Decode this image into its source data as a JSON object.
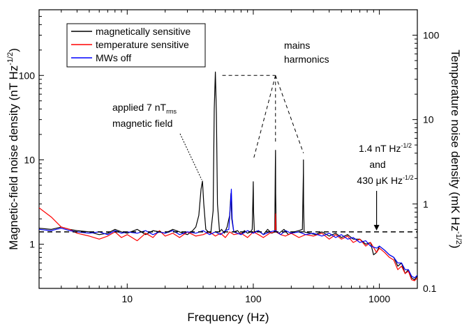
{
  "chart_data": {
    "type": "line",
    "xlabel": "Frequency (Hz)",
    "ylabel_left": {
      "text": "Magnetic-field noise density (nT Hz",
      "sup": "-1/2",
      "suffix": ")"
    },
    "ylabel_right": {
      "text": "Temperature noise density (mK Hz",
      "sup": "-1/2",
      "suffix": ")"
    },
    "x_scale": "log",
    "y_scale": "log",
    "xlim": [
      2,
      2000
    ],
    "ylim": [
      0.3,
      600
    ],
    "ylim_right": [
      0.1,
      200
    ],
    "x_ticks": [
      {
        "value": 10,
        "label": "10"
      },
      {
        "value": 100,
        "label": "100"
      },
      {
        "value": 1000,
        "label": "1000"
      }
    ],
    "y_ticks": [
      {
        "value": 1,
        "label": "1"
      },
      {
        "value": 10,
        "label": "10"
      },
      {
        "value": 100,
        "label": "100"
      }
    ],
    "y_ticks_right": [
      {
        "value": 0.1,
        "label": "0.1"
      },
      {
        "value": 1,
        "label": "1"
      },
      {
        "value": 10,
        "label": "10"
      },
      {
        "value": 100,
        "label": "100"
      }
    ],
    "grid": false,
    "legend_position": "top-left",
    "series": [
      {
        "name": "magnetically sensitive",
        "color": "#000000",
        "points": [
          [
            2,
            1.55
          ],
          [
            2.5,
            1.5
          ],
          [
            3,
            1.6
          ],
          [
            3.5,
            1.5
          ],
          [
            4,
            1.45
          ],
          [
            5,
            1.4
          ],
          [
            6,
            1.3
          ],
          [
            7,
            1.35
          ],
          [
            8,
            1.5
          ],
          [
            9,
            1.4
          ],
          [
            10,
            1.35
          ],
          [
            12,
            1.5
          ],
          [
            14,
            1.3
          ],
          [
            16,
            1.45
          ],
          [
            18,
            1.4
          ],
          [
            20,
            1.35
          ],
          [
            23,
            1.5
          ],
          [
            26,
            1.4
          ],
          [
            30,
            1.3
          ],
          [
            33,
            1.45
          ],
          [
            35,
            1.6
          ],
          [
            37,
            2.2
          ],
          [
            38.5,
            4.5
          ],
          [
            39.5,
            5.6
          ],
          [
            40.5,
            3.0
          ],
          [
            42,
            1.5
          ],
          [
            44,
            1.4
          ],
          [
            46,
            1.35
          ],
          [
            48,
            2.5
          ],
          [
            49,
            40
          ],
          [
            50,
            110
          ],
          [
            51,
            35
          ],
          [
            52,
            3.0
          ],
          [
            54,
            1.4
          ],
          [
            56,
            1.5
          ],
          [
            59,
            1.35
          ],
          [
            62,
            1.6
          ],
          [
            65,
            2.2
          ],
          [
            66.5,
            4.0
          ],
          [
            67.5,
            2.0
          ],
          [
            70,
            1.4
          ],
          [
            75,
            1.45
          ],
          [
            80,
            1.3
          ],
          [
            85,
            1.45
          ],
          [
            90,
            1.35
          ],
          [
            95,
            1.4
          ],
          [
            98,
            1.5
          ],
          [
            99.5,
            4.0
          ],
          [
            100,
            5.5
          ],
          [
            100.5,
            2.5
          ],
          [
            102,
            1.4
          ],
          [
            110,
            1.45
          ],
          [
            120,
            1.3
          ],
          [
            130,
            1.5
          ],
          [
            140,
            1.35
          ],
          [
            148,
            1.4
          ],
          [
            149.5,
            8
          ],
          [
            150,
            13
          ],
          [
            150.5,
            4
          ],
          [
            152,
            1.4
          ],
          [
            160,
            1.35
          ],
          [
            175,
            1.5
          ],
          [
            190,
            1.3
          ],
          [
            210,
            1.4
          ],
          [
            230,
            1.45
          ],
          [
            245,
            1.5
          ],
          [
            249.5,
            7
          ],
          [
            250,
            10
          ],
          [
            250.5,
            3
          ],
          [
            253,
            1.4
          ],
          [
            280,
            1.35
          ],
          [
            310,
            1.3
          ],
          [
            350,
            1.4
          ],
          [
            400,
            1.25
          ],
          [
            450,
            1.35
          ],
          [
            500,
            1.2
          ],
          [
            560,
            1.3
          ],
          [
            620,
            1.15
          ],
          [
            700,
            1.15
          ],
          [
            780,
            1.0
          ],
          [
            850,
            1.05
          ],
          [
            900,
            0.75
          ],
          [
            950,
            0.8
          ],
          [
            1000,
            0.95
          ],
          [
            1100,
            0.85
          ],
          [
            1200,
            0.75
          ],
          [
            1300,
            0.7
          ],
          [
            1400,
            0.55
          ],
          [
            1500,
            0.6
          ],
          [
            1600,
            0.45
          ],
          [
            1700,
            0.5
          ],
          [
            1800,
            0.4
          ],
          [
            1900,
            0.38
          ],
          [
            2000,
            0.42
          ]
        ]
      },
      {
        "name": "temperature sensitive",
        "color": "#ff0000",
        "points": [
          [
            2,
            2.7
          ],
          [
            2.5,
            2.1
          ],
          [
            3,
            1.6
          ],
          [
            3.5,
            1.5
          ],
          [
            4,
            1.35
          ],
          [
            5,
            1.25
          ],
          [
            6,
            1.15
          ],
          [
            7,
            1.25
          ],
          [
            8,
            1.4
          ],
          [
            9,
            1.2
          ],
          [
            10,
            1.3
          ],
          [
            12,
            1.1
          ],
          [
            14,
            1.35
          ],
          [
            16,
            1.2
          ],
          [
            18,
            1.45
          ],
          [
            20,
            1.25
          ],
          [
            23,
            1.35
          ],
          [
            26,
            1.2
          ],
          [
            30,
            1.4
          ],
          [
            35,
            1.25
          ],
          [
            40,
            1.3
          ],
          [
            45,
            1.4
          ],
          [
            50,
            1.25
          ],
          [
            55,
            1.35
          ],
          [
            60,
            1.2
          ],
          [
            65,
            1.4
          ],
          [
            70,
            1.3
          ],
          [
            80,
            1.35
          ],
          [
            90,
            1.2
          ],
          [
            100,
            1.4
          ],
          [
            110,
            1.3
          ],
          [
            120,
            1.2
          ],
          [
            135,
            1.35
          ],
          [
            149,
            1.4
          ],
          [
            150,
            2.3
          ],
          [
            151,
            1.4
          ],
          [
            165,
            1.3
          ],
          [
            180,
            1.25
          ],
          [
            200,
            1.35
          ],
          [
            230,
            1.2
          ],
          [
            260,
            1.3
          ],
          [
            300,
            1.25
          ],
          [
            350,
            1.35
          ],
          [
            400,
            1.15
          ],
          [
            450,
            1.3
          ],
          [
            500,
            1.15
          ],
          [
            560,
            1.25
          ],
          [
            620,
            1.05
          ],
          [
            700,
            1.15
          ],
          [
            780,
            0.95
          ],
          [
            850,
            1.05
          ],
          [
            950,
            0.8
          ],
          [
            1000,
            0.9
          ],
          [
            1100,
            0.8
          ],
          [
            1200,
            0.7
          ],
          [
            1300,
            0.65
          ],
          [
            1400,
            0.5
          ],
          [
            1500,
            0.55
          ],
          [
            1600,
            0.45
          ],
          [
            1700,
            0.48
          ],
          [
            1800,
            0.38
          ],
          [
            1900,
            0.37
          ],
          [
            2000,
            0.4
          ]
        ]
      },
      {
        "name": "MWs off",
        "color": "#0000ff",
        "points": [
          [
            2,
            1.5
          ],
          [
            2.5,
            1.45
          ],
          [
            3,
            1.55
          ],
          [
            3.5,
            1.45
          ],
          [
            4,
            1.4
          ],
          [
            5,
            1.35
          ],
          [
            6,
            1.4
          ],
          [
            7,
            1.3
          ],
          [
            8,
            1.45
          ],
          [
            9,
            1.35
          ],
          [
            10,
            1.4
          ],
          [
            12,
            1.35
          ],
          [
            14,
            1.45
          ],
          [
            16,
            1.3
          ],
          [
            18,
            1.4
          ],
          [
            20,
            1.35
          ],
          [
            23,
            1.45
          ],
          [
            26,
            1.3
          ],
          [
            30,
            1.4
          ],
          [
            35,
            1.35
          ],
          [
            40,
            1.45
          ],
          [
            45,
            1.3
          ],
          [
            50,
            1.4
          ],
          [
            55,
            1.3
          ],
          [
            60,
            1.45
          ],
          [
            64,
            1.5
          ],
          [
            66,
            3.0
          ],
          [
            67,
            4.5
          ],
          [
            68,
            2.0
          ],
          [
            70,
            1.4
          ],
          [
            80,
            1.3
          ],
          [
            90,
            1.45
          ],
          [
            100,
            1.35
          ],
          [
            110,
            1.45
          ],
          [
            120,
            1.3
          ],
          [
            135,
            1.4
          ],
          [
            150,
            1.45
          ],
          [
            165,
            1.3
          ],
          [
            180,
            1.45
          ],
          [
            200,
            1.35
          ],
          [
            230,
            1.4
          ],
          [
            260,
            1.3
          ],
          [
            300,
            1.35
          ],
          [
            350,
            1.25
          ],
          [
            400,
            1.35
          ],
          [
            450,
            1.2
          ],
          [
            500,
            1.3
          ],
          [
            560,
            1.15
          ],
          [
            620,
            1.2
          ],
          [
            700,
            1.05
          ],
          [
            780,
            1.1
          ],
          [
            850,
            0.95
          ],
          [
            950,
            0.9
          ],
          [
            1000,
            0.95
          ],
          [
            1100,
            0.85
          ],
          [
            1200,
            0.75
          ],
          [
            1300,
            0.7
          ],
          [
            1400,
            0.6
          ],
          [
            1500,
            0.6
          ],
          [
            1600,
            0.5
          ],
          [
            1700,
            0.5
          ],
          [
            1800,
            0.42
          ],
          [
            1900,
            0.4
          ],
          [
            2000,
            0.43
          ]
        ]
      }
    ],
    "reference_line": {
      "style": "dashed",
      "y": 1.4
    },
    "annotations": {
      "mains": [
        "mains",
        "harmonics"
      ],
      "applied_line1": "applied 7 nT",
      "applied_sub": "rms",
      "applied_line2": "magnetic field",
      "floor_line1": "1.4 nT Hz",
      "floor_line1_sup": "-1/2",
      "floor_line2": "and",
      "floor_line3": "430 μK Hz",
      "floor_line3_sup": "-1/2"
    }
  }
}
